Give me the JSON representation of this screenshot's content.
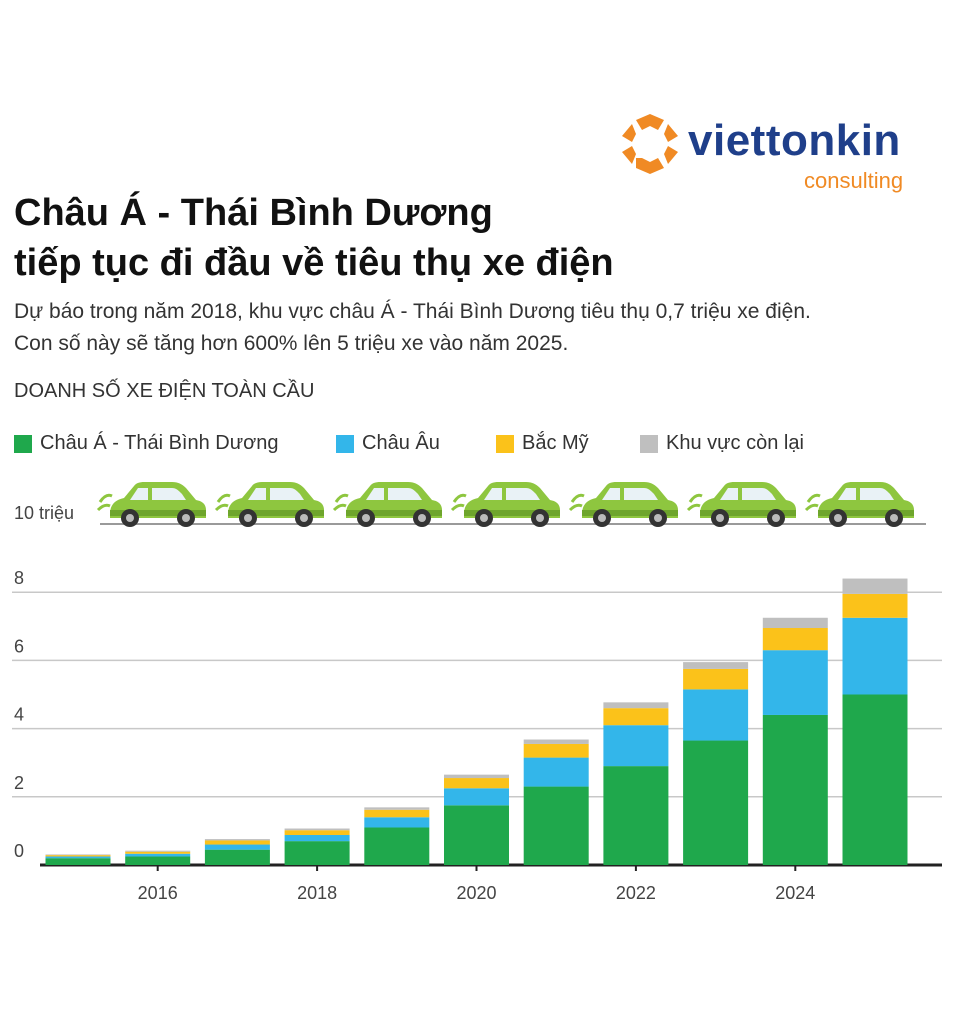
{
  "brand": {
    "name": "viettonkin",
    "sub": "consulting",
    "colors": {
      "name": "#1f3f8a",
      "accent": "#f08a24"
    }
  },
  "title_line1": "Châu Á - Thái Bình Dương",
  "title_line2": "tiếp tục đi đầu về tiêu thụ xe điện",
  "subtitle_line1": "Dự báo trong năm 2018, khu vực châu Á - Thái Bình Dương tiêu thụ 0,7 triệu xe điện.",
  "subtitle_line2": "Con số này sẽ tăng hơn 600% lên 5 triệu xe vào năm 2025.",
  "chart_label": "DOANH SỐ XE ĐIỆN TOÀN CẦU",
  "icons": {
    "car": "green-electric-car-icon"
  },
  "chart_data": {
    "type": "bar",
    "stacked": true,
    "x": [
      2015,
      2016,
      2017,
      2018,
      2019,
      2020,
      2021,
      2022,
      2023,
      2024,
      2025
    ],
    "x_tick_labels": [
      "2016",
      "2018",
      "2020",
      "2022",
      "2024"
    ],
    "x_tick_values": [
      2016,
      2018,
      2020,
      2022,
      2024
    ],
    "y_tick_labels": [
      "0",
      "2",
      "4",
      "6",
      "8",
      "10 triệu"
    ],
    "y_tick_values": [
      0,
      2,
      4,
      6,
      8,
      10
    ],
    "ylim": [
      0,
      10
    ],
    "grid": true,
    "legend_position": "top",
    "series": [
      {
        "name": "Châu Á - Thái Bình Dương",
        "color": "#1fa84c",
        "values": [
          0.2,
          0.25,
          0.45,
          0.7,
          1.1,
          1.75,
          2.3,
          2.9,
          3.65,
          4.4,
          5.0
        ]
      },
      {
        "name": "Châu Âu",
        "color": "#33b6ea",
        "values": [
          0.05,
          0.08,
          0.15,
          0.18,
          0.3,
          0.5,
          0.85,
          1.2,
          1.5,
          1.9,
          2.25
        ]
      },
      {
        "name": "Bắc Mỹ",
        "color": "#fbc21a",
        "values": [
          0.04,
          0.06,
          0.12,
          0.14,
          0.22,
          0.3,
          0.4,
          0.5,
          0.6,
          0.65,
          0.7
        ]
      },
      {
        "name": "Khu vực còn lại",
        "color": "#bfbfbf",
        "values": [
          0.02,
          0.03,
          0.04,
          0.05,
          0.07,
          0.1,
          0.13,
          0.17,
          0.2,
          0.3,
          0.45
        ]
      }
    ]
  }
}
